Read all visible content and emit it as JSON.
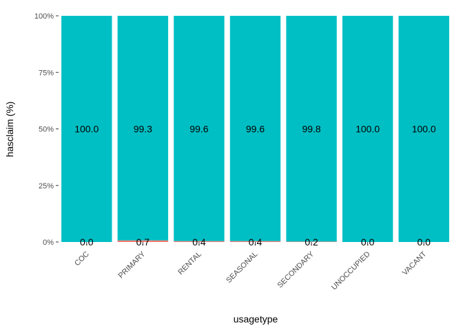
{
  "chart_data": {
    "type": "bar",
    "stacked": true,
    "percent_stacked": true,
    "xlabel": "usagetype",
    "ylabel": "hasclaim  (%)",
    "categories": [
      "COC",
      "PRIMARY",
      "RENTAL",
      "SEASONAL",
      "SECONDARY",
      "UNOCCUPIED",
      "VACANT"
    ],
    "series": [
      {
        "values": [
          0.0,
          0.7,
          0.4,
          0.4,
          0.2,
          0.0,
          0.0
        ],
        "color": "#F8766D"
      },
      {
        "values": [
          100.0,
          99.3,
          99.6,
          99.6,
          99.8,
          100.0,
          100.0
        ],
        "color": "#00BFC4"
      }
    ],
    "data_labels": {
      "bottom": [
        "0.0",
        "0.7",
        "0.4",
        "0.4",
        "0.2",
        "0.0",
        "0.0"
      ],
      "middle": [
        "100.0",
        "99.3",
        "99.6",
        "99.6",
        "99.8",
        "100.0",
        "100.0"
      ]
    },
    "y_ticks": [
      0,
      25,
      50,
      75,
      100
    ],
    "y_tick_labels": [
      "0%",
      "25%",
      "50%",
      "75%",
      "100%"
    ],
    "ylim": [
      0,
      100
    ],
    "grid": false,
    "legend": "none",
    "background": "#ffffff"
  }
}
